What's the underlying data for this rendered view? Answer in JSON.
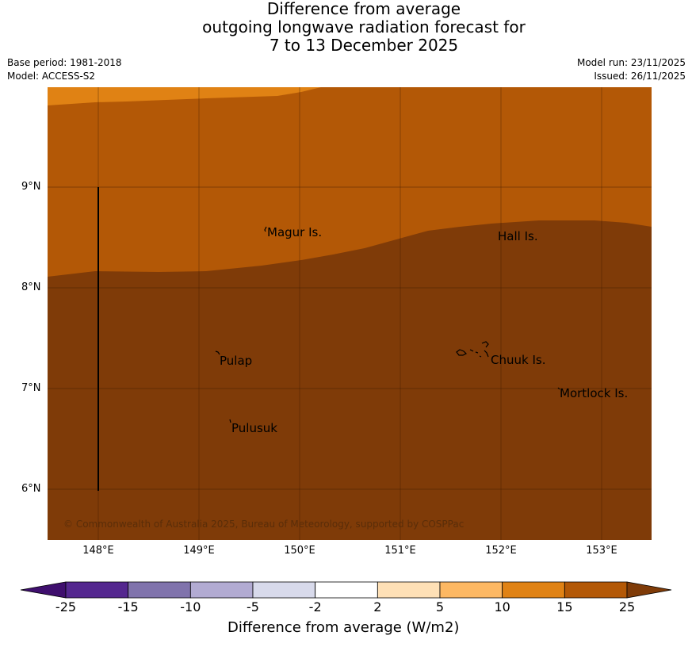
{
  "title": {
    "line1": "Difference from average",
    "line2": "outgoing longwave radiation forecast for",
    "line3": "7 to 13 December 2025"
  },
  "meta": {
    "base_period": "Base period: 1981-2018",
    "model": "Model: ACCESS-S2",
    "model_run": "Model run: 23/11/2025",
    "issued": "Issued: 26/11/2025"
  },
  "axes": {
    "lat_labels": [
      "9°N",
      "8°N",
      "7°N",
      "6°N"
    ],
    "lon_labels": [
      "148°E",
      "149°E",
      "150°E",
      "151°E",
      "152°E",
      "153°E"
    ]
  },
  "places": {
    "magur": "Magur Is.",
    "hall": "Hall Is.",
    "pulap": "Pulap",
    "chuuk": "Chuuk Is.",
    "mortlock": "Mortlock Is.",
    "pulusuk": "Pulusuk"
  },
  "copyright": "© Commonwealth of Australia 2025, Bureau of Meteorology, supported by COSPPac",
  "colorbar": {
    "ticks": [
      "-25",
      "-15",
      "-10",
      "-5",
      "-2",
      "2",
      "5",
      "10",
      "15",
      "25"
    ],
    "colors": [
      "#3f0f6e",
      "#54278f",
      "#8073ac",
      "#b2abd2",
      "#d8daeb",
      "#ffffff",
      "#fee0b6",
      "#fdb863",
      "#e08214",
      "#b35806",
      "#7f3b08"
    ],
    "title": "Difference from average (W/m2)"
  },
  "map_colors": {
    "band_10_15": "#e08214",
    "band_15_25": "#b35806",
    "band_over_25": "#7f3b08",
    "grid": "#3a1a03"
  }
}
